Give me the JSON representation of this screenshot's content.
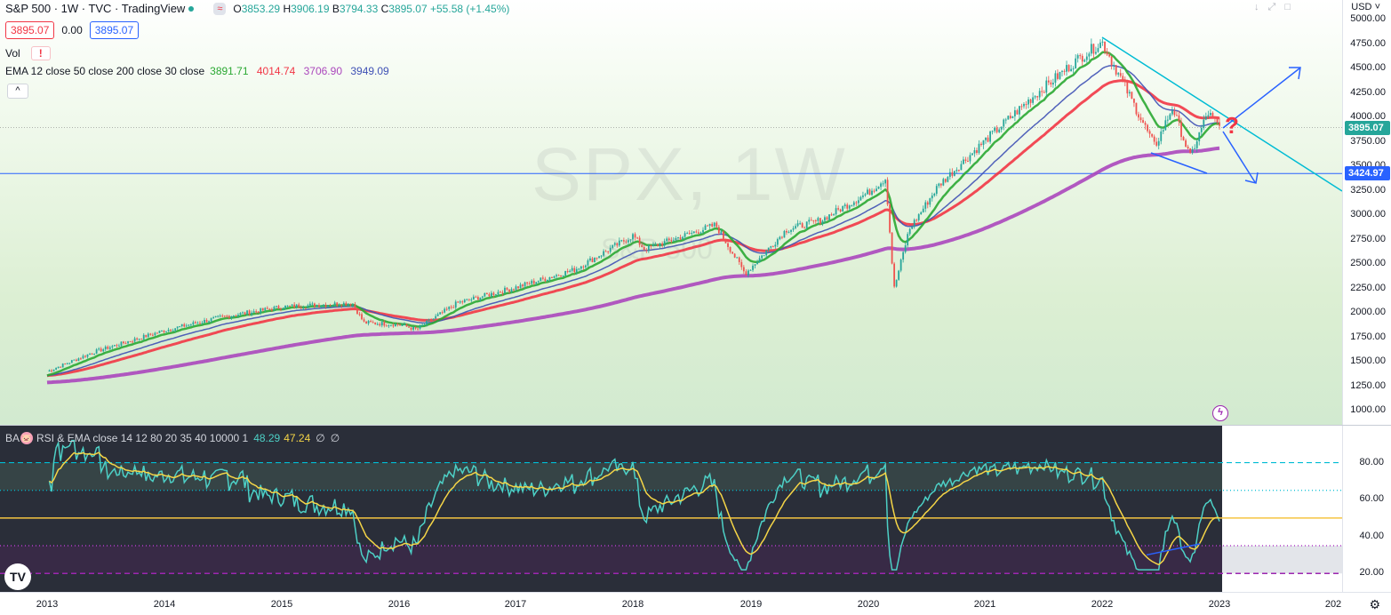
{
  "header": {
    "symbol_title": "S&P 500 · 1W · TVC · TradingView",
    "toggle_label": "≈",
    "ohlc": {
      "o_label": "O",
      "o_value": "3853.29",
      "h_label": "H",
      "h_value": "3906.19",
      "l_label": "B",
      "l_value": "3794.33",
      "c_label": "C",
      "c_value": "3895.07",
      "change": "+55.58 (+1.45%)"
    },
    "bid": "3895.07",
    "spread": "0.00",
    "ask": "3895.07"
  },
  "indicators": {
    "vol_label": "Vol",
    "vol_warning": "!",
    "ema_label": "EMA 12 close 50 close 200 close 30 close",
    "ema_values": [
      "3891.71",
      "4014.74",
      "3706.90",
      "3949.09"
    ],
    "ema_colors": [
      "#2aa832",
      "#f23645",
      "#ab47bc",
      "#3f51b5"
    ],
    "collapse_icon": "^",
    "rsi_prefix": "BA",
    "rsi_label": "RSI & EMA close 14 12 80 20 35 40 10000 1",
    "rsi_value": "48.29",
    "rsi_ema_value": "47.24",
    "rsi_extra_1": "∅",
    "rsi_extra_2": "∅"
  },
  "watermark": {
    "line1": "SPX, 1W",
    "line2": "S&P 500"
  },
  "price_scale": {
    "currency": "USD",
    "ticks": [
      "5000.00",
      "4750.00",
      "4500.00",
      "4250.00",
      "4000.00",
      "3750.00",
      "3500.00",
      "3250.00",
      "3000.00",
      "2750.00",
      "2500.00",
      "2250.00",
      "2000.00",
      "1750.00",
      "1500.00",
      "1250.00",
      "1000.00"
    ],
    "last_price_label": "3895.07",
    "hline_label": "3424.97",
    "last_price_color": "#26a69a",
    "hline_color": "#2962ff"
  },
  "rsi_scale": {
    "ticks": [
      "80.00",
      "60.00",
      "40.00",
      "20.00"
    ]
  },
  "time_axis": {
    "years": [
      "2013",
      "2014",
      "2015",
      "2016",
      "2017",
      "2018",
      "2019",
      "2020",
      "2021",
      "2022",
      "2023",
      "202"
    ]
  },
  "colors": {
    "bull": "#26a69a",
    "bear": "#ef5350",
    "ema_fast": "#2aa832",
    "ema_mid": "#3f51b5",
    "ema_slow": "#f23645",
    "ema_long": "#ab47bc",
    "trendline": "#00bcd4",
    "arrows": "#2962ff",
    "question": "#f23645",
    "rsi_line": "#4dd0c6",
    "rsi_ema": "#f5d547"
  },
  "icons": [
    "chevron-up-icon",
    "arrow-down-icon",
    "expand-icon",
    "maximize-icon",
    "lightning-icon",
    "tradingview-logo",
    "gear-icon",
    "piggy-icon"
  ],
  "chart_data": {
    "type": "line",
    "symbol": "SPX",
    "interval": "1W",
    "price_range": [
      1000,
      5000
    ],
    "x": [
      "2013",
      "2014",
      "2015",
      "2016",
      "2017",
      "2018",
      "2019",
      "2020",
      "2021",
      "2022",
      "2023"
    ],
    "series": [
      {
        "values": [
          1420,
          1820,
          2060,
          1900,
          2260,
          2780,
          2700,
          3230,
          3760,
          4770,
          3895
        ],
        "color": "#26a69a"
      }
    ],
    "horizontal_line": 3424.97,
    "rsi_range": [
      10,
      100
    ],
    "rsi_levels": [
      80,
      65,
      50,
      35,
      20
    ]
  }
}
